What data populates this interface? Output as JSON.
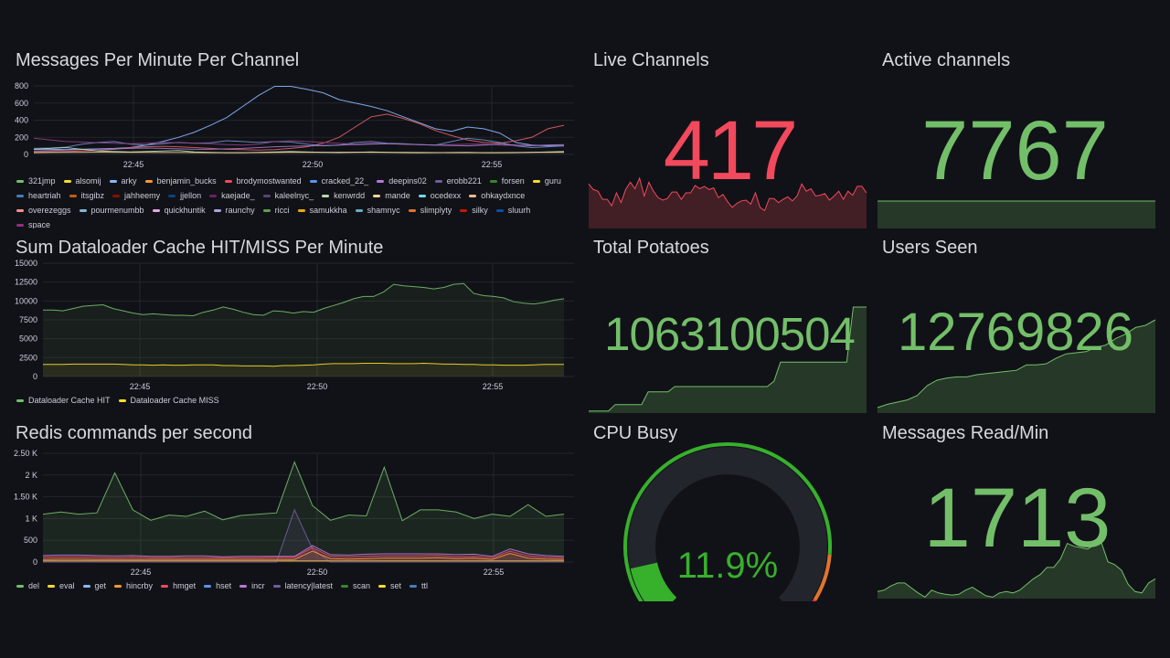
{
  "theme": {
    "bg": "#111217",
    "green": "#73bf69",
    "red": "#f2495c",
    "gauge_green": "#37b02c",
    "orange": "#e0752d",
    "gauge_red": "#e02f44"
  },
  "panels": {
    "messages": {
      "title": "Messages Per Minute Per Channel"
    },
    "cache": {
      "title": "Sum Dataloader Cache HIT/MISS Per Minute"
    },
    "redis": {
      "title": "Redis commands per second"
    },
    "live": {
      "title": "Live Channels",
      "value": "417"
    },
    "active": {
      "title": "Active channels",
      "value": "7767"
    },
    "potatoes": {
      "title": "Total Potatoes",
      "value": "1063100504"
    },
    "users": {
      "title": "Users Seen",
      "value": "12769826"
    },
    "cpu": {
      "title": "CPU Busy",
      "value": "11.9%",
      "percent": 11.9,
      "thresholds": [
        {
          "from": 0,
          "to": 85,
          "color": "#37b02c"
        },
        {
          "from": 85,
          "to": 95,
          "color": "#e0752d"
        },
        {
          "from": 95,
          "to": 100,
          "color": "#e02f44"
        }
      ]
    },
    "read": {
      "title": "Messages Read/Min",
      "value": "1713"
    }
  },
  "chart_data": [
    {
      "id": "messages",
      "type": "line",
      "title": "Messages Per Minute Per Channel",
      "ylim": [
        0,
        800
      ],
      "yticks": [
        "800",
        "600",
        "400",
        "200",
        "0"
      ],
      "xticks": [
        "22:45",
        "22:50",
        "22:55"
      ],
      "xrange_minutes": [
        -5.2,
        8.1
      ],
      "legend": [
        {
          "name": "321jmp",
          "color": "#73bf69"
        },
        {
          "name": "alsomij",
          "color": "#fade2a"
        },
        {
          "name": "arky",
          "color": "#8ab8ff"
        },
        {
          "name": "benjamin_bucks",
          "color": "#ff9830"
        },
        {
          "name": "brodymostwanted",
          "color": "#f2495c"
        },
        {
          "name": "cracked_22_",
          "color": "#5794f2"
        },
        {
          "name": "deepins02",
          "color": "#b877d9"
        },
        {
          "name": "erobb221",
          "color": "#705da0"
        },
        {
          "name": "forsen",
          "color": "#37872d"
        },
        {
          "name": "guru",
          "color": "#fade2a"
        },
        {
          "name": "heartriah",
          "color": "#447ebc"
        },
        {
          "name": "itsgibz",
          "color": "#c15c17"
        },
        {
          "name": "jahheemy",
          "color": "#890f02"
        },
        {
          "name": "jjellon",
          "color": "#0a437c"
        },
        {
          "name": "kaejade_",
          "color": "#6d1f62"
        },
        {
          "name": "kaleelnyc_",
          "color": "#584477"
        },
        {
          "name": "kenwrdd",
          "color": "#b7dbab"
        },
        {
          "name": "mande",
          "color": "#f4d598"
        },
        {
          "name": "ocedexx",
          "color": "#70dbed"
        },
        {
          "name": "ohkaydxnce",
          "color": "#f9ba8f"
        },
        {
          "name": "overezeggs",
          "color": "#f29191"
        },
        {
          "name": "pourmenumbb",
          "color": "#82b5d8"
        },
        {
          "name": "quickhuntik",
          "color": "#e5a8e2"
        },
        {
          "name": "raunchy",
          "color": "#aea2e0"
        },
        {
          "name": "ricci",
          "color": "#629e51"
        },
        {
          "name": "samukkha",
          "color": "#e5ac0e"
        },
        {
          "name": "shamnyc",
          "color": "#64b0c8"
        },
        {
          "name": "slimplyty",
          "color": "#e0752d"
        },
        {
          "name": "silky",
          "color": "#bf1b00"
        },
        {
          "name": "sluurh",
          "color": "#0a50a1"
        },
        {
          "name": "space",
          "color": "#962d82"
        }
      ],
      "series": [
        {
          "name": "cracked_22_",
          "color": "#8ab8ff",
          "values": [
            60,
            60,
            58,
            62,
            65,
            70,
            80,
            110,
            150,
            200,
            260,
            340,
            430,
            560,
            690,
            795,
            795,
            760,
            720,
            640,
            600,
            560,
            510,
            440,
            370,
            300,
            270,
            320,
            300,
            250,
            140,
            110,
            100,
            100
          ]
        },
        {
          "name": "brodymostwanted",
          "color": "#e05f6a",
          "values": [
            30,
            32,
            35,
            40,
            45,
            60,
            80,
            90,
            95,
            90,
            80,
            70,
            60,
            55,
            50,
            55,
            70,
            90,
            130,
            200,
            320,
            440,
            470,
            420,
            360,
            280,
            220,
            170,
            140,
            130,
            160,
            200,
            300,
            340
          ]
        },
        {
          "name": "heartriah",
          "color": "#6d8fc9",
          "values": [
            70,
            75,
            85,
            120,
            140,
            150,
            120,
            110,
            125,
            140,
            130,
            135,
            160,
            150,
            140,
            150,
            145,
            120,
            100,
            110,
            140,
            150,
            130,
            125,
            115,
            110,
            150,
            190,
            170,
            140,
            100,
            80,
            90,
            100
          ]
        },
        {
          "name": "kaejade_",
          "color": "#8e3d86",
          "values": [
            190,
            170,
            150,
            145,
            135,
            130,
            125,
            130,
            140,
            135,
            130,
            125,
            115,
            110,
            120,
            150,
            160,
            150,
            140,
            130,
            120,
            130,
            125,
            120,
            115,
            110,
            115,
            120,
            120,
            110,
            105,
            100,
            110,
            110
          ]
        },
        {
          "name": "erobb221",
          "color": "#a17ac9",
          "values": [
            40,
            45,
            50,
            55,
            60,
            65,
            70,
            75,
            70,
            65,
            60,
            60,
            65,
            70,
            80,
            90,
            95,
            100,
            105,
            110,
            115,
            120,
            125,
            120,
            115,
            110,
            105,
            100,
            110,
            120,
            110,
            105,
            110,
            115
          ]
        },
        {
          "name": "kenwrdd",
          "color": "#b7dbab",
          "values": [
            60,
            70,
            80,
            60,
            40,
            35,
            30,
            35,
            40,
            45,
            30,
            25,
            20,
            20,
            25,
            30,
            35,
            30,
            25,
            20,
            25,
            30,
            25,
            20,
            18,
            20,
            22,
            25,
            20,
            18,
            20,
            25,
            30,
            35
          ]
        },
        {
          "name": "mande",
          "color": "#f4d598",
          "values": [
            20,
            22,
            24,
            25,
            26,
            25,
            24,
            23,
            22,
            22,
            21,
            20,
            20,
            20,
            21,
            22,
            23,
            24,
            25,
            26,
            26,
            25,
            24,
            23,
            22,
            21,
            20,
            20,
            20,
            21,
            22,
            23,
            24,
            25
          ]
        }
      ]
    },
    {
      "id": "cache",
      "type": "area",
      "title": "Sum Dataloader Cache HIT/MISS Per Minute",
      "ylim": [
        0,
        15000
      ],
      "yticks": [
        "15000",
        "12500",
        "10000",
        "7500",
        "5000",
        "2500",
        "0"
      ],
      "xticks": [
        "22:45",
        "22:50",
        "22:55"
      ],
      "legend": [
        {
          "name": "Dataloader Cache HIT",
          "color": "#73bf69"
        },
        {
          "name": "Dataloader Cache MISS",
          "color": "#fade2a"
        }
      ],
      "series": [
        {
          "name": "Dataloader Cache HIT",
          "color": "#73bf69",
          "values": [
            8800,
            8800,
            8700,
            9000,
            9300,
            9400,
            9500,
            9000,
            8700,
            8400,
            8200,
            8300,
            8200,
            8100,
            8100,
            8050,
            8500,
            8800,
            9200,
            8900,
            8500,
            8200,
            8100,
            8700,
            8600,
            8400,
            8600,
            8500,
            9000,
            9400,
            9800,
            10300,
            10600,
            10600,
            11200,
            12200,
            12000,
            11900,
            11800,
            11600,
            11800,
            12200,
            12300,
            11000,
            10700,
            10600,
            10400,
            9900,
            9700,
            9600,
            9800,
            10100,
            10300
          ]
        },
        {
          "name": "Dataloader Cache MISS",
          "color": "#fade2a",
          "values": [
            1600,
            1600,
            1600,
            1650,
            1650,
            1650,
            1650,
            1650,
            1600,
            1550,
            1550,
            1500,
            1550,
            1500,
            1500,
            1550,
            1550,
            1550,
            1450,
            1450,
            1400,
            1400,
            1400,
            1350,
            1450,
            1450,
            1500,
            1550,
            1650,
            1700,
            1700,
            1700,
            1750,
            1750,
            1750,
            1700,
            1700,
            1700,
            1750,
            1700,
            1650,
            1650,
            1600,
            1600,
            1550,
            1550,
            1500,
            1500,
            1500,
            1550,
            1600,
            1600,
            1600
          ]
        }
      ]
    },
    {
      "id": "redis",
      "type": "area",
      "title": "Redis commands per second",
      "ylim": [
        0,
        2500
      ],
      "yticks": [
        "2.50 K",
        "2 K",
        "1.50 K",
        "1 K",
        "500",
        "0"
      ],
      "xticks": [
        "22:45",
        "22:50",
        "22:55"
      ],
      "legend": [
        {
          "name": "del",
          "color": "#73bf69"
        },
        {
          "name": "eval",
          "color": "#fade2a"
        },
        {
          "name": "get",
          "color": "#8ab8ff"
        },
        {
          "name": "hincrby",
          "color": "#ff9830"
        },
        {
          "name": "hmget",
          "color": "#f2495c"
        },
        {
          "name": "hset",
          "color": "#5794f2"
        },
        {
          "name": "incr",
          "color": "#b877d9"
        },
        {
          "name": "latency|latest",
          "color": "#705da0"
        },
        {
          "name": "scan",
          "color": "#37872d"
        },
        {
          "name": "set",
          "color": "#fade2a"
        },
        {
          "name": "ttl",
          "color": "#447ebc"
        }
      ],
      "series": [
        {
          "name": "del",
          "color": "#73bf69",
          "values": [
            1100,
            1150,
            1100,
            1130,
            2050,
            1200,
            960,
            1080,
            1050,
            1170,
            970,
            1070,
            1100,
            1130,
            2300,
            1300,
            960,
            1080,
            1060,
            2180,
            950,
            1200,
            1200,
            1150,
            1000,
            1100,
            1050,
            1320,
            1050,
            1100
          ]
        },
        {
          "name": "latency|latest",
          "color": "#705da0",
          "values": [
            0,
            0,
            0,
            0,
            0,
            0,
            0,
            0,
            0,
            0,
            0,
            0,
            0,
            0,
            1200,
            300,
            0,
            0,
            0,
            0,
            0,
            0,
            0,
            0,
            0,
            0,
            0,
            0,
            0,
            0
          ]
        },
        {
          "name": "incr",
          "color": "#b877d9",
          "values": [
            150,
            160,
            160,
            150,
            140,
            150,
            130,
            130,
            140,
            140,
            120,
            130,
            130,
            130,
            130,
            380,
            170,
            160,
            180,
            190,
            190,
            190,
            190,
            170,
            180,
            130,
            300,
            190,
            150,
            130
          ]
        },
        {
          "name": "hmget",
          "color": "#f2495c",
          "values": [
            110,
            115,
            115,
            110,
            100,
            110,
            100,
            100,
            100,
            100,
            100,
            100,
            100,
            110,
            110,
            330,
            130,
            120,
            130,
            140,
            140,
            140,
            150,
            120,
            130,
            100,
            250,
            140,
            110,
            100
          ]
        },
        {
          "name": "hincrby",
          "color": "#ff9830",
          "values": [
            60,
            65,
            65,
            60,
            60,
            60,
            60,
            60,
            60,
            60,
            60,
            60,
            60,
            60,
            60,
            250,
            80,
            70,
            80,
            90,
            90,
            90,
            100,
            80,
            90,
            60,
            200,
            90,
            70,
            60
          ]
        },
        {
          "name": "eval",
          "color": "#c9a84c",
          "values": [
            30,
            30,
            30,
            30,
            30,
            30,
            30,
            30,
            30,
            30,
            30,
            30,
            30,
            30,
            30,
            30,
            30,
            30,
            30,
            30,
            30,
            30,
            30,
            30,
            30,
            30,
            30,
            30,
            30,
            30
          ]
        }
      ]
    },
    {
      "id": "live-spark",
      "type": "area",
      "color": "#f2495c",
      "values": [
        55,
        48,
        46,
        36,
        36,
        28,
        44,
        32,
        48,
        57,
        49,
        62,
        40,
        57,
        46,
        38,
        35,
        37,
        45,
        45,
        36,
        44,
        44,
        53,
        49,
        52,
        48,
        50,
        38,
        42,
        33,
        26,
        31,
        34,
        35,
        30,
        44,
        26,
        22,
        37,
        37,
        32,
        36,
        39,
        34,
        40,
        55,
        46,
        49,
        40,
        41,
        43,
        35,
        40,
        46,
        36,
        46,
        41,
        52,
        52,
        44
      ]
    },
    {
      "id": "active-spark",
      "type": "area",
      "color": "#73bf69",
      "values": [
        50,
        50,
        50,
        50,
        50,
        50,
        50,
        50,
        50,
        50
      ]
    },
    {
      "id": "potatoes-spark",
      "type": "area",
      "color": "#73bf69",
      "values": [
        2,
        2,
        2,
        2,
        8,
        8,
        8,
        8,
        8,
        20,
        20,
        20,
        20,
        25,
        25,
        25,
        25,
        25,
        25,
        25,
        25,
        25,
        25,
        25,
        25,
        25,
        25,
        25,
        30,
        48,
        48,
        48,
        48,
        48,
        48,
        48,
        48,
        48,
        48,
        48,
        100,
        100,
        100
      ]
    },
    {
      "id": "users-spark",
      "type": "area",
      "color": "#73bf69",
      "values": [
        5,
        8,
        10,
        12,
        16,
        25,
        30,
        32,
        33,
        33,
        35,
        36,
        37,
        38,
        39,
        44,
        44,
        45,
        50,
        54,
        55,
        56,
        60,
        62,
        68,
        72,
        78,
        80,
        85
      ]
    },
    {
      "id": "read-spark",
      "type": "area",
      "color": "#73bf69",
      "values": [
        10,
        12,
        18,
        22,
        22,
        15,
        8,
        2,
        12,
        8,
        6,
        5,
        6,
        12,
        16,
        10,
        4,
        2,
        8,
        10,
        8,
        12,
        20,
        28,
        34,
        44,
        44,
        56,
        78,
        74,
        72,
        70,
        76,
        80,
        52,
        48,
        40,
        20,
        10,
        8,
        22,
        28
      ]
    }
  ]
}
